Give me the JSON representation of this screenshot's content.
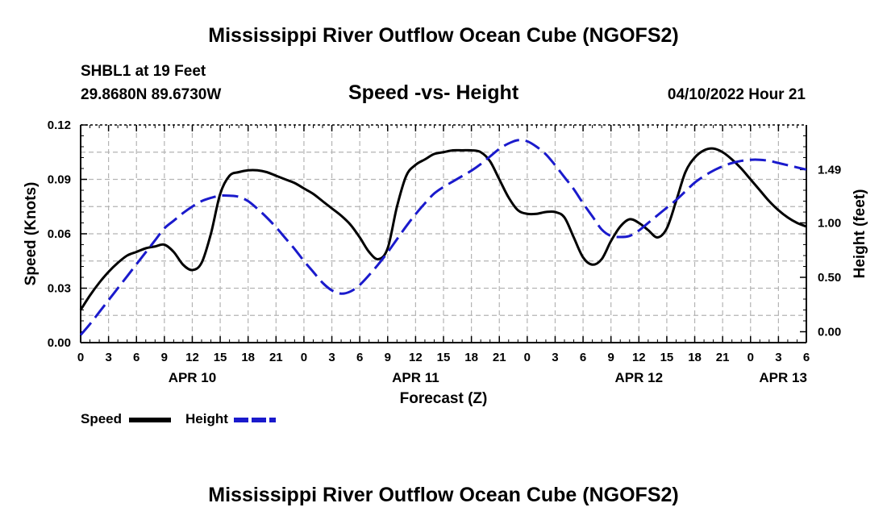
{
  "page": {
    "title_top": "Mississippi River Outflow Ocean Cube (NGOFS2)",
    "title_bottom": "Mississippi River Outflow Ocean Cube (NGOFS2)",
    "station": "SHBL1 at 19 Feet",
    "coords": "29.8680N  89.6730W",
    "subtitle": "Speed -vs- Height",
    "datetime": "04/10/2022 Hour 21"
  },
  "legend": {
    "speed_label": "Speed",
    "height_label": "Height"
  },
  "colors": {
    "speed": "#000000",
    "height": "#1a1acc",
    "grid": "#b4b4b4"
  },
  "chart_data": {
    "type": "line",
    "xlabel": "Forecast (Z)",
    "ylabel_left": "Speed (Knots)",
    "ylabel_right": "Height (feet)",
    "xlim": [
      0,
      78
    ],
    "ylim_left": [
      0,
      0.12
    ],
    "ylim_right": [
      -0.1,
      1.9
    ],
    "x_ticks": [
      0,
      3,
      6,
      9,
      12,
      15,
      18,
      21,
      24,
      27,
      30,
      33,
      36,
      39,
      42,
      45,
      48,
      51,
      54,
      57,
      60,
      63,
      66,
      69,
      72,
      75,
      78
    ],
    "x_tick_labels": [
      "0",
      "3",
      "6",
      "9",
      "12",
      "15",
      "18",
      "21",
      "0",
      "3",
      "6",
      "9",
      "12",
      "15",
      "18",
      "21",
      "0",
      "3",
      "6",
      "9",
      "12",
      "15",
      "18",
      "21",
      "0",
      "3",
      "6"
    ],
    "date_labels": [
      {
        "x": 12,
        "label": "APR 10"
      },
      {
        "x": 36,
        "label": "APR 11"
      },
      {
        "x": 60,
        "label": "APR 12"
      },
      {
        "x": 75.5,
        "label": "APR 13"
      }
    ],
    "y_left_ticks": [
      0,
      0.03,
      0.06,
      0.09,
      0.12
    ],
    "y_left_tick_labels": [
      "0.00",
      "0.03",
      "0.06",
      "0.09",
      "0.12"
    ],
    "y_right_ticks": [
      0.0,
      0.5,
      1.0,
      1.49
    ],
    "y_right_tick_labels": [
      "0.00",
      "0.50",
      "1.00",
      "1.49"
    ],
    "grid": true,
    "series": [
      {
        "name": "Speed",
        "axis": "left",
        "style": "solid",
        "x": [
          0,
          1,
          2,
          3,
          4,
          5,
          6,
          7,
          8,
          9,
          10,
          11,
          12,
          13,
          14,
          15,
          16,
          17,
          18,
          19,
          20,
          21,
          22,
          23,
          24,
          25,
          26,
          27,
          28,
          29,
          30,
          31,
          32,
          33,
          34,
          35,
          36,
          37,
          38,
          39,
          40,
          41,
          42,
          43,
          44,
          45,
          46,
          47,
          48,
          49,
          50,
          51,
          52,
          53,
          54,
          55,
          56,
          57,
          58,
          59,
          60,
          61,
          62,
          63,
          64,
          65,
          66,
          67,
          68,
          69,
          70,
          71,
          72,
          73,
          74,
          75,
          76,
          77,
          78
        ],
        "values": [
          0.018,
          0.026,
          0.033,
          0.039,
          0.044,
          0.048,
          0.05,
          0.052,
          0.053,
          0.054,
          0.05,
          0.043,
          0.04,
          0.044,
          0.06,
          0.082,
          0.092,
          0.094,
          0.095,
          0.095,
          0.094,
          0.092,
          0.09,
          0.088,
          0.085,
          0.082,
          0.078,
          0.074,
          0.07,
          0.065,
          0.058,
          0.05,
          0.046,
          0.052,
          0.075,
          0.092,
          0.098,
          0.101,
          0.104,
          0.105,
          0.106,
          0.106,
          0.106,
          0.105,
          0.1,
          0.09,
          0.08,
          0.073,
          0.071,
          0.071,
          0.072,
          0.072,
          0.069,
          0.058,
          0.047,
          0.043,
          0.046,
          0.056,
          0.064,
          0.068,
          0.066,
          0.062,
          0.058,
          0.063,
          0.078,
          0.094,
          0.102,
          0.106,
          0.107,
          0.105,
          0.101,
          0.096,
          0.09,
          0.084,
          0.078,
          0.073,
          0.069,
          0.066,
          0.064
        ]
      },
      {
        "name": "Height",
        "axis": "right",
        "style": "dashed",
        "x": [
          0,
          1,
          2,
          3,
          4,
          5,
          6,
          7,
          8,
          9,
          10,
          11,
          12,
          13,
          14,
          15,
          16,
          17,
          18,
          19,
          20,
          21,
          22,
          23,
          24,
          25,
          26,
          27,
          28,
          29,
          30,
          31,
          32,
          33,
          34,
          35,
          36,
          37,
          38,
          39,
          40,
          41,
          42,
          43,
          44,
          45,
          46,
          47,
          48,
          49,
          50,
          51,
          52,
          53,
          54,
          55,
          56,
          57,
          58,
          59,
          60,
          61,
          62,
          63,
          64,
          65,
          66,
          67,
          68,
          69,
          70,
          71,
          72,
          73,
          74,
          75,
          76,
          77,
          78
        ],
        "values": [
          -0.03,
          0.07,
          0.18,
          0.29,
          0.4,
          0.51,
          0.62,
          0.73,
          0.84,
          0.95,
          1.02,
          1.09,
          1.15,
          1.2,
          1.23,
          1.25,
          1.25,
          1.24,
          1.2,
          1.13,
          1.05,
          0.96,
          0.86,
          0.76,
          0.65,
          0.55,
          0.45,
          0.38,
          0.35,
          0.37,
          0.43,
          0.52,
          0.62,
          0.73,
          0.85,
          0.97,
          1.08,
          1.18,
          1.27,
          1.33,
          1.38,
          1.43,
          1.48,
          1.54,
          1.61,
          1.68,
          1.73,
          1.76,
          1.75,
          1.7,
          1.63,
          1.53,
          1.42,
          1.31,
          1.18,
          1.06,
          0.94,
          0.88,
          0.87,
          0.88,
          0.93,
          1.0,
          1.07,
          1.14,
          1.21,
          1.29,
          1.37,
          1.43,
          1.48,
          1.52,
          1.55,
          1.57,
          1.58,
          1.58,
          1.57,
          1.55,
          1.53,
          1.51,
          1.49
        ]
      }
    ]
  }
}
